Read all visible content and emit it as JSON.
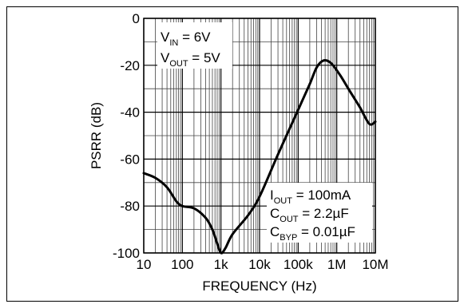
{
  "chart_data": {
    "type": "line",
    "title": "",
    "xlabel": "FREQUENCY (Hz)",
    "ylabel": "PSRR (dB)",
    "x_scale": "log",
    "xlim": [
      10,
      10000000
    ],
    "ylim": [
      -100,
      0
    ],
    "grid": true,
    "x_tick_labels": [
      "10",
      "100",
      "1k",
      "10k",
      "100k",
      "1M",
      "10M"
    ],
    "x_tick_values": [
      10,
      100,
      1000,
      10000,
      100000,
      1000000,
      10000000
    ],
    "y_tick_labels": [
      "0",
      "-20",
      "-40",
      "-60",
      "-80",
      "-100"
    ],
    "y_tick_values": [
      0,
      -20,
      -40,
      -60,
      -80,
      -100
    ],
    "series": [
      {
        "name": "",
        "points": [
          [
            10,
            -66
          ],
          [
            20,
            -68
          ],
          [
            40,
            -72
          ],
          [
            70,
            -78
          ],
          [
            100,
            -80
          ],
          [
            200,
            -81
          ],
          [
            400,
            -85
          ],
          [
            600,
            -90
          ],
          [
            800,
            -96
          ],
          [
            1000,
            -100
          ],
          [
            1300,
            -98
          ],
          [
            2000,
            -92
          ],
          [
            5000,
            -84
          ],
          [
            10000,
            -76
          ],
          [
            30000,
            -58
          ],
          [
            100000,
            -39
          ],
          [
            200000,
            -28
          ],
          [
            300000,
            -21
          ],
          [
            450000,
            -18
          ],
          [
            700000,
            -19
          ],
          [
            1200000,
            -24
          ],
          [
            2000000,
            -30
          ],
          [
            4000000,
            -38
          ],
          [
            7000000,
            -45
          ],
          [
            10000000,
            -44
          ]
        ]
      }
    ],
    "annotations": {
      "conditions_top": [
        {
          "main": "V",
          "sub": "IN",
          "rest": " = 6V"
        },
        {
          "main": "V",
          "sub": "OUT",
          "rest": " = 5V"
        }
      ],
      "conditions_bottom": [
        {
          "main": "I",
          "sub": "OUT",
          "rest": " = 100mA"
        },
        {
          "main": "C",
          "sub": "OUT",
          "rest": " = 2.2µF"
        },
        {
          "main": "C",
          "sub": "BYP",
          "rest": " = 0.01µF"
        }
      ]
    }
  }
}
